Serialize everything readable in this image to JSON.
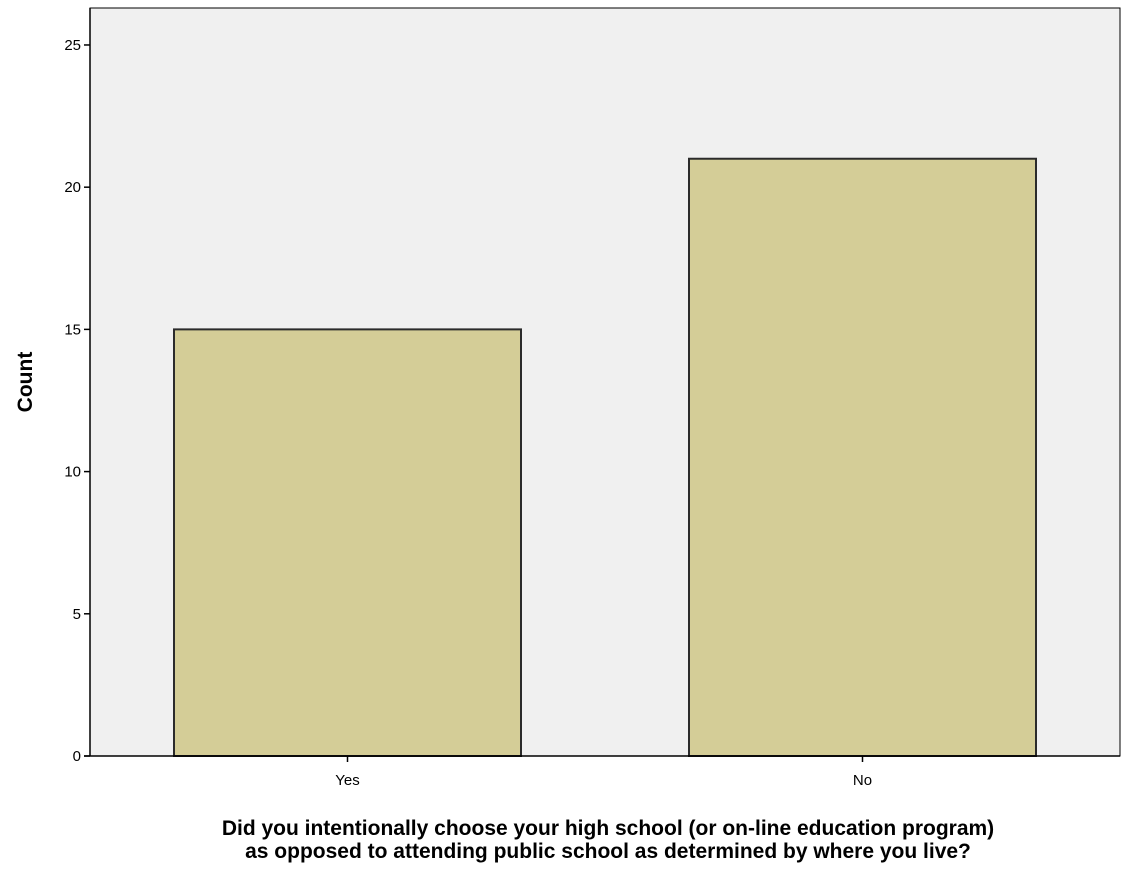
{
  "chart_data": {
    "type": "bar",
    "categories": [
      "Yes",
      "No"
    ],
    "values": [
      15,
      21
    ],
    "xlabel_lines": [
      "Did you intentionally choose your high school (or on-line education program)",
      "as opposed to attending public school as determined by where you live?"
    ],
    "ylabel": "Count",
    "ylim": [
      0,
      26.3
    ],
    "yticks": [
      0,
      5,
      10,
      15,
      20,
      25
    ],
    "grid": false,
    "legend": "none",
    "colors": {
      "bar_fill": "#d4cd97",
      "bar_stroke": "#2b2b2b",
      "plot_background": "#f0f0f0",
      "axis": "#000000"
    }
  }
}
